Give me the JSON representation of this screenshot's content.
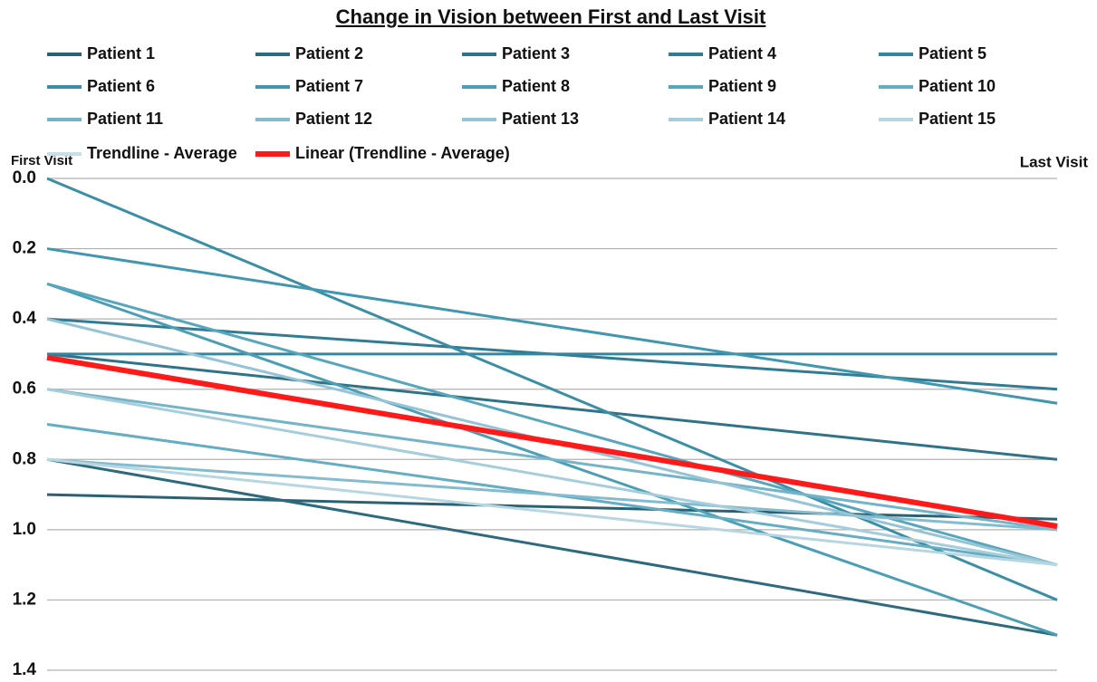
{
  "chart_data": {
    "type": "line",
    "title": "Change in Vision between First and Last Visit",
    "categories": [
      "First Visit",
      "Last Visit"
    ],
    "ylim": [
      0,
      1.4
    ],
    "y_reversed": true,
    "yticks": [
      {
        "value": 0,
        "label": "0.0"
      },
      0.2,
      0.4,
      0.6,
      0.8,
      {
        "value": 1,
        "label": "1.0"
      },
      1.2,
      1.4
    ],
    "grid": true,
    "legend": "top",
    "series": [
      {
        "name": "Patient 1",
        "color": "#2b6173",
        "values": [
          0.9,
          0.97
        ]
      },
      {
        "name": "Patient 2",
        "color": "#2d6a7e",
        "values": [
          0.8,
          1.3
        ]
      },
      {
        "name": "Patient 3",
        "color": "#2f7389",
        "values": [
          0.5,
          0.8
        ]
      },
      {
        "name": "Patient 4",
        "color": "#317c93",
        "values": [
          0.4,
          0.6
        ]
      },
      {
        "name": "Patient 5",
        "color": "#3486a0",
        "values": [
          0.5,
          0.5
        ]
      },
      {
        "name": "Patient 6",
        "color": "#3a8fa8",
        "values": [
          0,
          1.2
        ]
      },
      {
        "name": "Patient 7",
        "color": "#4197af",
        "values": [
          0.2,
          0.64
        ]
      },
      {
        "name": "Patient 8",
        "color": "#4a9fb7",
        "values": [
          0.3,
          1.3
        ]
      },
      {
        "name": "Patient 9",
        "color": "#56a6bd",
        "values": [
          0.3,
          1.1
        ]
      },
      {
        "name": "Patient 10",
        "color": "#64adc3",
        "values": [
          0.7,
          1.1
        ]
      },
      {
        "name": "Patient 11",
        "color": "#74b4c9",
        "values": [
          0.6,
          1.0
        ]
      },
      {
        "name": "Patient 12",
        "color": "#84bccf",
        "values": [
          0.8,
          1.0
        ]
      },
      {
        "name": "Patient 13",
        "color": "#94c4d5",
        "values": [
          0.4,
          1.1
        ]
      },
      {
        "name": "Patient 14",
        "color": "#a5cddb",
        "values": [
          0.6,
          1.1
        ]
      },
      {
        "name": "Patient 15",
        "color": "#b6d6e2",
        "values": [
          0.8,
          1.1
        ]
      },
      {
        "name": "Trendline - Average",
        "color": "#c6dfe8",
        "values": [
          0.51,
          0.99
        ]
      },
      {
        "name": "Linear (Trendline - Average)",
        "color": "#ff1a1a",
        "values": [
          0.51,
          0.99
        ],
        "width": 6
      }
    ]
  }
}
